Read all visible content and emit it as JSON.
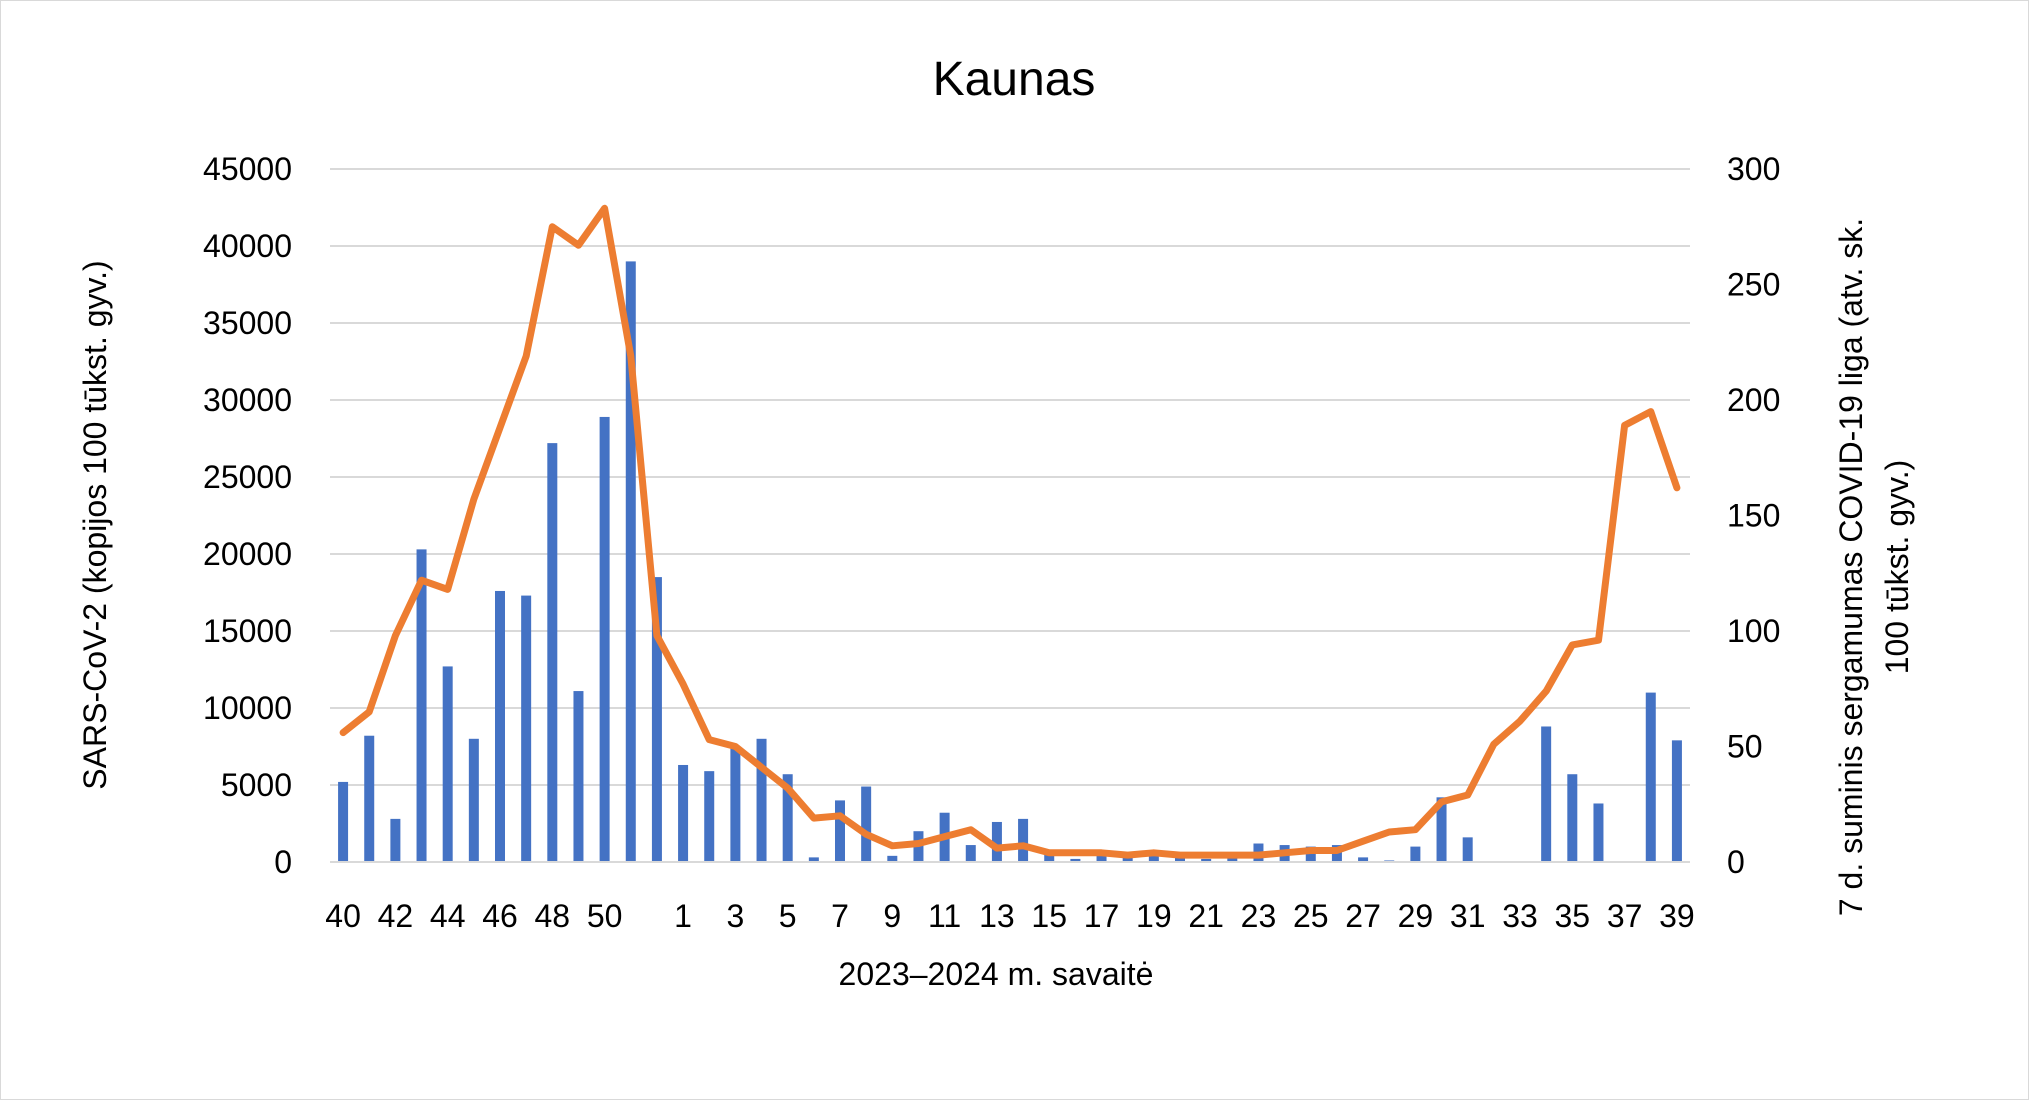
{
  "chart_data": {
    "type": "bar",
    "title": "Kaunas",
    "xlabel": "2023–2024 m. savaitė",
    "ylabel_left": "SARS-CoV-2  (kopijos 100 tūkst. gyv.)",
    "ylabel_right_line1": "7 d. suminis sergamumas COVID-19 liga (atv. sk.",
    "ylabel_right_line2": "100 tūkst. gyv.)",
    "ylim_left": [
      0,
      45000
    ],
    "ylim_right": [
      0,
      300
    ],
    "yticks_left": [
      "0",
      "5000",
      "10000",
      "15000",
      "20000",
      "25000",
      "30000",
      "35000",
      "40000",
      "45000"
    ],
    "yticks_right": [
      "0",
      "50",
      "100",
      "150",
      "200",
      "250",
      "300"
    ],
    "grid": true,
    "categories": [
      "40",
      "41",
      "42",
      "43",
      "44",
      "45",
      "46",
      "47",
      "48",
      "49",
      "50",
      "51",
      "52",
      "1",
      "2",
      "3",
      "4",
      "5",
      "6",
      "7",
      "8",
      "9",
      "10",
      "11",
      "12",
      "13",
      "14",
      "15",
      "16",
      "17",
      "18",
      "19",
      "20",
      "21",
      "22",
      "23",
      "24",
      "25",
      "26",
      "27",
      "28",
      "29",
      "30",
      "31",
      "32",
      "33",
      "34",
      "35",
      "36",
      "37",
      "38",
      "39"
    ],
    "shown_tick_labels": [
      "40",
      "42",
      "44",
      "46",
      "48",
      "50",
      "1",
      "3",
      "5",
      "7",
      "9",
      "11",
      "13",
      "15",
      "17",
      "19",
      "21",
      "23",
      "25",
      "27",
      "29",
      "31",
      "33",
      "35",
      "37",
      "39"
    ],
    "series": [
      {
        "type": "bar",
        "axis": "left",
        "color": "#4472c4",
        "values": [
          5200,
          8200,
          2800,
          20300,
          12700,
          8000,
          17600,
          17300,
          27200,
          11100,
          28900,
          39000,
          18500,
          6300,
          5900,
          7500,
          8000,
          5700,
          300,
          4000,
          4900,
          400,
          2000,
          3200,
          1100,
          2600,
          2800,
          500,
          200,
          500,
          500,
          600,
          400,
          200,
          300,
          1200,
          1100,
          1000,
          1100,
          300,
          100,
          1000,
          4200,
          1600,
          0,
          0,
          8800,
          5700,
          3800,
          0,
          11000,
          7900
        ]
      },
      {
        "type": "line",
        "axis": "right",
        "color": "#ed7d31",
        "values": [
          56,
          65,
          98,
          122,
          118,
          157,
          188,
          219,
          275,
          267,
          283,
          219,
          98,
          77,
          53,
          50,
          41,
          32,
          19,
          20,
          12,
          7,
          8,
          11,
          14,
          6,
          7,
          4,
          4,
          4,
          3,
          4,
          3,
          3,
          3,
          3,
          4,
          5,
          5,
          9,
          13,
          14,
          26,
          29,
          51,
          61,
          74,
          94,
          96,
          189,
          195,
          162
        ]
      }
    ]
  }
}
